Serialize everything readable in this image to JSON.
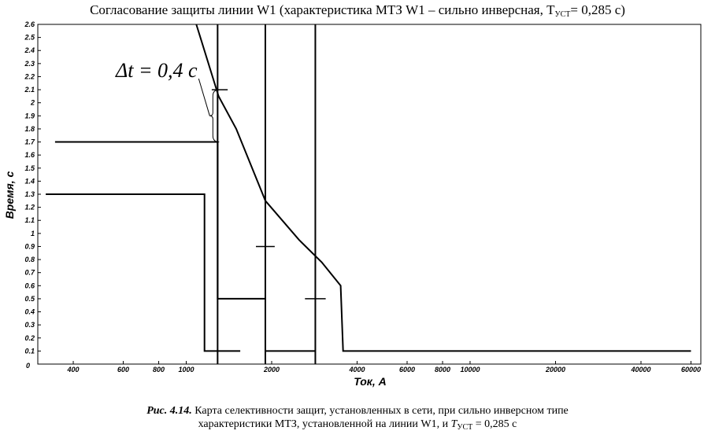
{
  "title_pre": "Согласование защиты линии W1 (характеристика МТЗ W1 – сильно инверсная, T",
  "title_sub": "УСТ",
  "title_post": "= 0,285 с)",
  "caption": {
    "label": "Рис. 4.14.",
    "line1": " Карта селективности защит, установленных в сети, при сильно инверсном типе",
    "line2_pre": "характеристики МТЗ, установленной на линии W1, и ",
    "line2_T": "T",
    "line2_sub": "УСТ",
    "line2_post": " = 0,285 с"
  },
  "chart_data": {
    "type": "line",
    "title": "Согласование защиты линии W1 (характеристика МТЗ W1 – сильно инверсная, TУСТ= 0,285 с)",
    "xlabel": "Ток, А",
    "ylabel": "Время, с",
    "x_scale": "log",
    "xlim": [
      300,
      65000
    ],
    "ylim": [
      0,
      2.6
    ],
    "grid": false,
    "x_ticks": [
      {
        "v": 400,
        "label": "400"
      },
      {
        "v": 600,
        "label": "600"
      },
      {
        "v": 800,
        "label": "800"
      },
      {
        "v": 1000,
        "label": "1000"
      },
      {
        "v": 2000,
        "label": "2000"
      },
      {
        "v": 4000,
        "label": "4000"
      },
      {
        "v": 6000,
        "label": "6000"
      },
      {
        "v": 8000,
        "label": "8000"
      },
      {
        "v": 10000,
        "label": "10000"
      },
      {
        "v": 20000,
        "label": "20000"
      },
      {
        "v": 40000,
        "label": "40000"
      },
      {
        "v": 60000,
        "label": "60000"
      }
    ],
    "x_zero_label": "0",
    "y_ticks": [
      0.1,
      0.2,
      0.3,
      0.4,
      0.5,
      0.6,
      0.7,
      0.8,
      0.9,
      1,
      1.1,
      1.2,
      1.3,
      1.4,
      1.5,
      1.6,
      1.7,
      1.8,
      1.9,
      2,
      2.1,
      2.2,
      2.3,
      2.4,
      2.5,
      2.6
    ],
    "annotation": "Δt = 0,4 c",
    "series": [
      {
        "name": "",
        "points": [
          [
            320,
            1.3
          ],
          [
            1160,
            1.3
          ],
          [
            1160,
            0.1
          ],
          [
            1550,
            0.1
          ]
        ]
      },
      {
        "name": "",
        "points": [
          [
            345,
            1.7
          ],
          [
            1290,
            1.7
          ],
          [
            1290,
            0.5
          ],
          [
            1900,
            0.5
          ],
          [
            1900,
            0.1
          ],
          [
            2850,
            0.1
          ]
        ]
      },
      {
        "name": "",
        "points": [
          [
            1085,
            2.6
          ],
          [
            1300,
            2.05
          ],
          [
            1500,
            1.8
          ],
          [
            1900,
            1.25
          ],
          [
            2500,
            0.95
          ],
          [
            3000,
            0.78
          ],
          [
            3500,
            0.6
          ],
          [
            3570,
            0.1
          ],
          [
            60000,
            0.1
          ]
        ]
      }
    ],
    "vertical_lines": [
      1290,
      1900,
      2850
    ],
    "tick_marks": [
      {
        "x": 1290,
        "y": 2.1,
        "from": 1230,
        "to": 1400
      },
      {
        "x": 1900,
        "y": 0.9,
        "from": 1760,
        "to": 2050
      },
      {
        "x": 2850,
        "y": 0.5,
        "from": 2620,
        "to": 3100
      }
    ],
    "brace": {
      "x": 1210,
      "from": 1.7,
      "to": 2.1
    }
  }
}
